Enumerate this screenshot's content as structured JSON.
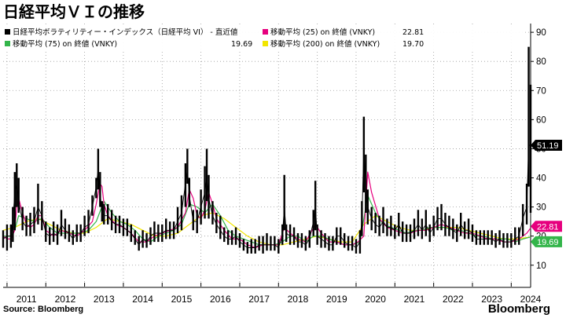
{
  "title": "日経平均ＶＩの推移",
  "source": "Source: Bloomberg",
  "brand": "Bloomberg",
  "legend": [
    {
      "label": "日経平均ボラティリティー・インデックス（日経平均 VI） - 直近値",
      "value": "",
      "color": "#000000"
    },
    {
      "label": "移動平均 (25) on 終値 (VNKY)",
      "value": "22.81",
      "color": "#e6007e"
    },
    {
      "label": "移動平均 (75) on 終値 (VNKY)",
      "value": "19.69",
      "color": "#33b54a"
    },
    {
      "label": "移動平均 (200) on 終値 (VNKY)",
      "value": "19.70",
      "color": "#f2e600"
    }
  ],
  "chart_data": {
    "type": "line",
    "title": "日経平均ＶＩの推移",
    "ylim": [
      4,
      93
    ],
    "yticks": [
      10,
      20,
      30,
      40,
      50,
      60,
      70,
      80,
      90
    ],
    "xlim": [
      2010.9,
      2024.5
    ],
    "xticks": [
      {
        "label": "2011",
        "x": 2011.0
      },
      {
        "label": "2012",
        "x": 2012.0
      },
      {
        "label": "2013",
        "x": 2013.0
      },
      {
        "label": "2014",
        "x": 2014.0
      },
      {
        "label": "2015",
        "x": 2015.0
      },
      {
        "label": "2016",
        "x": 2016.0
      },
      {
        "label": "2017",
        "x": 2017.0
      },
      {
        "label": "2018",
        "x": 2018.0
      },
      {
        "label": "2019",
        "x": 2019.0
      },
      {
        "label": "2020",
        "x": 2020.0
      },
      {
        "label": "2021",
        "x": 2021.0
      },
      {
        "label": "2022",
        "x": 2022.0
      },
      {
        "label": "2023",
        "x": 2023.0
      },
      {
        "label": "2024",
        "x": 2024.0
      }
    ],
    "last_value_labels": [
      {
        "text": "51.19",
        "value": 51.19,
        "color": "#000000"
      },
      {
        "text": "22.81",
        "value": 22.81,
        "color": "#e6007e"
      },
      {
        "text": "19.69",
        "value": 19.69,
        "color": "#33b54a"
      }
    ],
    "series": [
      {
        "name": "日経平均VI 直近値",
        "color": "#000000",
        "style": "bars",
        "x": [
          2010.9,
          2011.0,
          2011.1,
          2011.15,
          2011.2,
          2011.25,
          2011.3,
          2011.4,
          2011.5,
          2011.6,
          2011.7,
          2011.8,
          2011.9,
          2012.0,
          2012.1,
          2012.2,
          2012.3,
          2012.4,
          2012.5,
          2012.6,
          2012.7,
          2012.8,
          2012.9,
          2013.0,
          2013.1,
          2013.2,
          2013.3,
          2013.35,
          2013.4,
          2013.45,
          2013.5,
          2013.6,
          2013.7,
          2013.8,
          2013.9,
          2014.0,
          2014.1,
          2014.2,
          2014.3,
          2014.4,
          2014.5,
          2014.6,
          2014.7,
          2014.8,
          2014.9,
          2015.0,
          2015.1,
          2015.2,
          2015.3,
          2015.4,
          2015.5,
          2015.6,
          2015.65,
          2015.7,
          2015.8,
          2015.9,
          2016.0,
          2016.1,
          2016.15,
          2016.2,
          2016.3,
          2016.4,
          2016.5,
          2016.6,
          2016.7,
          2016.8,
          2016.9,
          2017.0,
          2017.1,
          2017.2,
          2017.3,
          2017.4,
          2017.5,
          2017.6,
          2017.7,
          2017.8,
          2017.9,
          2018.0,
          2018.1,
          2018.15,
          2018.2,
          2018.3,
          2018.4,
          2018.5,
          2018.6,
          2018.7,
          2018.8,
          2018.9,
          2018.95,
          2019.0,
          2019.1,
          2019.2,
          2019.3,
          2019.4,
          2019.5,
          2019.6,
          2019.7,
          2019.8,
          2019.9,
          2020.0,
          2020.1,
          2020.15,
          2020.2,
          2020.25,
          2020.3,
          2020.4,
          2020.5,
          2020.6,
          2020.7,
          2020.8,
          2020.9,
          2021.0,
          2021.1,
          2021.2,
          2021.3,
          2021.4,
          2021.5,
          2021.6,
          2021.7,
          2021.8,
          2021.9,
          2022.0,
          2022.1,
          2022.2,
          2022.3,
          2022.4,
          2022.5,
          2022.6,
          2022.7,
          2022.8,
          2022.9,
          2023.0,
          2023.1,
          2023.2,
          2023.3,
          2023.4,
          2023.5,
          2023.6,
          2023.7,
          2023.8,
          2023.9,
          2024.0,
          2024.1,
          2024.2,
          2024.3,
          2024.4,
          2024.45,
          2024.5
        ],
        "low": [
          16,
          15,
          16,
          18,
          22,
          30,
          28,
          22,
          20,
          20,
          21,
          24,
          22,
          18,
          17,
          18,
          17,
          20,
          19,
          18,
          17,
          18,
          18,
          20,
          21,
          27,
          33,
          36,
          30,
          25,
          24,
          24,
          22,
          21,
          21,
          20,
          20,
          18,
          17,
          15,
          16,
          16,
          17,
          18,
          18,
          18,
          19,
          19,
          19,
          21,
          22,
          30,
          38,
          30,
          22,
          21,
          24,
          26,
          32,
          26,
          24,
          21,
          19,
          18,
          17,
          17,
          17,
          16,
          15,
          14,
          14,
          14,
          15,
          14,
          15,
          15,
          15,
          14,
          17,
          22,
          18,
          17,
          17,
          16,
          16,
          15,
          16,
          20,
          22,
          17,
          16,
          16,
          15,
          15,
          17,
          17,
          16,
          15,
          15,
          14,
          14,
          20,
          35,
          28,
          24,
          22,
          21,
          20,
          21,
          20,
          20,
          19,
          20,
          18,
          18,
          18,
          19,
          20,
          19,
          20,
          18,
          20,
          22,
          22,
          20,
          20,
          19,
          18,
          20,
          19,
          19,
          18,
          17,
          17,
          17,
          17,
          17,
          16,
          17,
          16,
          16,
          16,
          17,
          17,
          20,
          24,
          37,
          28
        ],
        "high": [
          22,
          24,
          24,
          30,
          42,
          45,
          40,
          30,
          27,
          28,
          30,
          38,
          32,
          25,
          23,
          25,
          24,
          29,
          26,
          24,
          22,
          24,
          24,
          27,
          29,
          34,
          40,
          50,
          42,
          32,
          31,
          31,
          29,
          27,
          27,
          26,
          26,
          24,
          22,
          20,
          22,
          21,
          23,
          25,
          24,
          24,
          26,
          25,
          25,
          30,
          34,
          45,
          50,
          40,
          29,
          29,
          36,
          44,
          50,
          41,
          32,
          28,
          27,
          23,
          22,
          22,
          23,
          21,
          19,
          18,
          19,
          19,
          20,
          20,
          21,
          20,
          20,
          19,
          24,
          41,
          24,
          24,
          23,
          21,
          21,
          20,
          22,
          29,
          39,
          24,
          22,
          21,
          20,
          20,
          23,
          23,
          21,
          20,
          20,
          19,
          22,
          32,
          61,
          48,
          36,
          30,
          28,
          27,
          30,
          26,
          27,
          24,
          28,
          25,
          24,
          24,
          26,
          29,
          26,
          29,
          24,
          27,
          30,
          31,
          28,
          27,
          26,
          24,
          28,
          25,
          26,
          24,
          22,
          22,
          22,
          22,
          22,
          21,
          22,
          21,
          21,
          21,
          23,
          23,
          31,
          38,
          85,
          72
        ],
        "close": [
          19,
          20,
          20,
          25,
          35,
          38,
          32,
          25,
          23,
          24,
          25,
          30,
          27,
          21,
          20,
          21,
          20,
          24,
          22,
          21,
          19,
          21,
          21,
          23,
          24,
          30,
          37,
          43,
          35,
          28,
          27,
          27,
          25,
          24,
          24,
          23,
          22,
          21,
          19,
          17,
          19,
          18,
          20,
          21,
          21,
          21,
          22,
          22,
          22,
          25,
          28,
          38,
          43,
          34,
          25,
          25,
          30,
          35,
          40,
          33,
          27,
          24,
          22,
          20,
          19,
          19,
          20,
          18,
          17,
          16,
          16,
          16,
          17,
          17,
          17,
          17,
          17,
          16,
          20,
          30,
          21,
          20,
          20,
          18,
          18,
          17,
          19,
          25,
          30,
          20,
          19,
          18,
          17,
          17,
          20,
          20,
          18,
          17,
          17,
          16,
          18,
          26,
          50,
          38,
          30,
          26,
          24,
          23,
          25,
          23,
          23,
          22,
          24,
          21,
          21,
          21,
          22,
          24,
          22,
          24,
          21,
          23,
          26,
          26,
          24,
          23,
          22,
          21,
          24,
          22,
          22,
          21,
          19,
          19,
          19,
          19,
          19,
          18,
          19,
          18,
          18,
          18,
          19,
          20,
          26,
          30,
          51.19,
          51.19
        ]
      },
      {
        "name": "移動平均 (25) on 終値 (VNKY)",
        "color": "#e6007e",
        "x": [
          2010.9,
          2011.0,
          2011.1,
          2011.2,
          2011.25,
          2011.3,
          2011.4,
          2011.5,
          2011.6,
          2011.7,
          2011.8,
          2011.9,
          2012.0,
          2012.2,
          2012.4,
          2012.6,
          2012.8,
          2013.0,
          2013.2,
          2013.3,
          2013.4,
          2013.45,
          2013.5,
          2013.6,
          2013.8,
          2014.0,
          2014.2,
          2014.4,
          2014.6,
          2014.8,
          2015.0,
          2015.2,
          2015.4,
          2015.6,
          2015.7,
          2015.8,
          2015.9,
          2016.0,
          2016.1,
          2016.2,
          2016.3,
          2016.4,
          2016.6,
          2016.8,
          2017.0,
          2017.2,
          2017.4,
          2017.6,
          2017.8,
          2018.0,
          2018.15,
          2018.3,
          2018.5,
          2018.7,
          2018.95,
          2019.1,
          2019.3,
          2019.5,
          2019.7,
          2019.9,
          2020.05,
          2020.2,
          2020.3,
          2020.4,
          2020.6,
          2020.8,
          2021.0,
          2021.2,
          2021.4,
          2021.6,
          2021.8,
          2022.0,
          2022.2,
          2022.4,
          2022.6,
          2022.8,
          2023.0,
          2023.2,
          2023.4,
          2023.6,
          2023.8,
          2024.0,
          2024.2,
          2024.3,
          2024.4,
          2024.5
        ],
        "y": [
          20,
          19,
          19,
          22,
          30,
          33,
          28,
          24,
          23,
          24,
          27,
          27,
          22,
          20,
          22,
          21,
          20,
          22,
          25,
          31,
          38,
          37,
          31,
          27,
          24,
          23,
          21,
          18,
          18,
          20,
          21,
          22,
          23,
          28,
          36,
          33,
          27,
          26,
          29,
          35,
          31,
          26,
          22,
          19,
          19,
          17,
          16,
          17,
          17,
          17,
          23,
          21,
          19,
          18,
          24,
          21,
          18,
          18,
          17,
          17,
          18,
          20,
          42,
          35,
          26,
          23,
          22,
          21,
          21,
          22,
          22,
          23,
          24,
          23,
          22,
          21,
          21,
          20,
          19,
          19,
          18,
          18,
          19,
          20,
          21,
          22.81
        ]
      },
      {
        "name": "移動平均 (75) on 終値 (VNKY)",
        "color": "#33b54a",
        "x": [
          2010.9,
          2011.1,
          2011.2,
          2011.3,
          2011.5,
          2011.7,
          2011.9,
          2012.1,
          2012.3,
          2012.5,
          2012.7,
          2012.9,
          2013.1,
          2013.3,
          2013.5,
          2013.7,
          2013.9,
          2014.1,
          2014.3,
          2014.5,
          2014.7,
          2014.9,
          2015.1,
          2015.3,
          2015.5,
          2015.7,
          2015.9,
          2016.1,
          2016.3,
          2016.5,
          2016.7,
          2016.9,
          2017.1,
          2017.3,
          2017.5,
          2017.7,
          2017.9,
          2018.1,
          2018.3,
          2018.5,
          2018.7,
          2018.9,
          2019.1,
          2019.3,
          2019.5,
          2019.7,
          2019.9,
          2020.1,
          2020.3,
          2020.5,
          2020.7,
          2020.9,
          2021.1,
          2021.3,
          2021.5,
          2021.7,
          2021.9,
          2022.1,
          2022.3,
          2022.5,
          2022.7,
          2022.9,
          2023.1,
          2023.3,
          2023.5,
          2023.7,
          2023.9,
          2024.1,
          2024.3,
          2024.5
        ],
        "y": [
          20,
          20,
          22,
          27,
          26,
          25,
          26,
          23,
          21,
          21,
          21,
          21,
          22,
          25,
          32,
          28,
          25,
          24,
          22,
          19,
          18,
          20,
          21,
          22,
          24,
          31,
          30,
          28,
          31,
          27,
          22,
          20,
          19,
          18,
          17,
          17,
          17,
          18,
          20,
          20,
          18,
          20,
          20,
          19,
          18,
          17,
          17,
          18,
          34,
          28,
          24,
          23,
          22,
          21,
          22,
          22,
          23,
          23,
          23,
          22,
          22,
          21,
          20,
          20,
          19,
          19,
          19,
          18,
          19,
          19.69
        ]
      },
      {
        "name": "移動平均 (200) on 終値 (VNKY)",
        "color": "#f2e600",
        "x": [
          2010.9,
          2011.2,
          2011.5,
          2011.8,
          2012.1,
          2012.4,
          2012.7,
          2013.0,
          2013.3,
          2013.6,
          2013.9,
          2014.2,
          2014.5,
          2014.8,
          2015.1,
          2015.4,
          2015.7,
          2016.0,
          2016.3,
          2016.6,
          2016.9,
          2017.2,
          2017.5,
          2017.8,
          2018.1,
          2018.4,
          2018.7,
          2019.0,
          2019.3,
          2019.6,
          2019.9,
          2020.2,
          2020.5,
          2020.8,
          2021.1,
          2021.4,
          2021.7,
          2022.0,
          2022.3,
          2022.6,
          2022.9,
          2023.2,
          2023.5,
          2023.8,
          2024.1,
          2024.5
        ],
        "y": [
          22,
          23,
          25,
          26,
          24,
          22,
          21,
          21,
          23,
          26,
          25,
          24,
          22,
          20,
          20,
          21,
          24,
          27,
          28,
          26,
          23,
          20,
          18,
          17,
          17,
          18,
          19,
          20,
          19,
          18,
          18,
          24,
          27,
          25,
          23,
          22,
          22,
          23,
          23,
          23,
          22,
          21,
          20,
          19,
          19,
          19.7
        ]
      }
    ]
  }
}
